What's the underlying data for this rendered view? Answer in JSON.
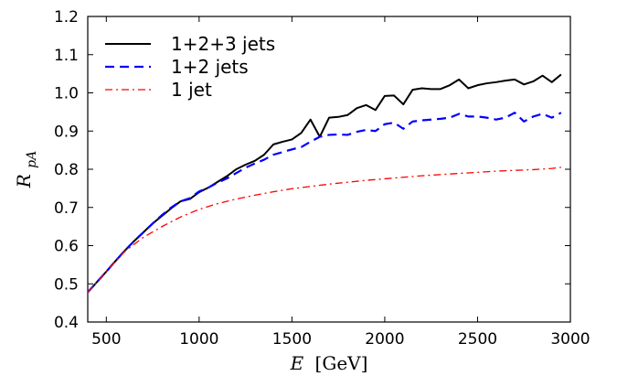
{
  "chart_data": {
    "type": "line",
    "title": "",
    "xlabel": "E [GeV]",
    "ylabel": "R_pA",
    "xlim": [
      400,
      3000
    ],
    "ylim": [
      0.4,
      1.2
    ],
    "x_ticks": [
      500,
      1000,
      1500,
      2000,
      2500,
      3000
    ],
    "y_ticks": [
      0.4,
      0.5,
      0.6,
      0.7,
      0.8,
      0.9,
      1.0,
      1.1,
      1.2
    ],
    "x_tick_labels": [
      "500",
      "1000",
      "1500",
      "2000",
      "2500",
      "3000"
    ],
    "y_tick_labels": [
      "0.4",
      "0.5",
      "0.6",
      "0.7",
      "0.8",
      "0.9",
      "1.0",
      "1.1",
      "1.2"
    ],
    "grid": false,
    "legend_position": "top-left",
    "series": [
      {
        "name": "1+2+3 jets",
        "color": "#000000",
        "style": "solid",
        "x": [
          400,
          450,
          500,
          550,
          600,
          650,
          700,
          750,
          800,
          850,
          900,
          950,
          1000,
          1050,
          1100,
          1150,
          1200,
          1250,
          1300,
          1350,
          1400,
          1450,
          1500,
          1550,
          1600,
          1650,
          1700,
          1750,
          1800,
          1850,
          1900,
          1950,
          2000,
          2050,
          2100,
          2150,
          2200,
          2250,
          2300,
          2350,
          2400,
          2450,
          2500,
          2550,
          2600,
          2650,
          2700,
          2750,
          2800,
          2850,
          2900,
          2950
        ],
        "y": [
          0.478,
          0.505,
          0.532,
          0.56,
          0.587,
          0.612,
          0.635,
          0.658,
          0.678,
          0.698,
          0.716,
          0.722,
          0.74,
          0.752,
          0.767,
          0.782,
          0.8,
          0.812,
          0.822,
          0.838,
          0.865,
          0.872,
          0.878,
          0.895,
          0.93,
          0.885,
          0.935,
          0.937,
          0.942,
          0.96,
          0.968,
          0.955,
          0.992,
          0.993,
          0.97,
          1.008,
          1.012,
          1.01,
          1.01,
          1.02,
          1.035,
          1.012,
          1.02,
          1.025,
          1.028,
          1.032,
          1.035,
          1.022,
          1.03,
          1.045,
          1.028,
          1.048
        ]
      },
      {
        "name": "1+2 jets",
        "color": "#0000ff",
        "style": "dashed",
        "x": [
          400,
          450,
          500,
          550,
          600,
          650,
          700,
          750,
          800,
          850,
          900,
          950,
          1000,
          1050,
          1100,
          1150,
          1200,
          1250,
          1300,
          1350,
          1400,
          1450,
          1500,
          1550,
          1600,
          1650,
          1700,
          1750,
          1800,
          1850,
          1900,
          1950,
          2000,
          2050,
          2100,
          2150,
          2200,
          2250,
          2300,
          2350,
          2400,
          2450,
          2500,
          2550,
          2600,
          2650,
          2700,
          2750,
          2800,
          2850,
          2900,
          2950
        ],
        "y": [
          0.478,
          0.505,
          0.532,
          0.56,
          0.587,
          0.612,
          0.635,
          0.658,
          0.68,
          0.7,
          0.716,
          0.724,
          0.742,
          0.752,
          0.765,
          0.776,
          0.79,
          0.804,
          0.815,
          0.825,
          0.838,
          0.845,
          0.852,
          0.858,
          0.872,
          0.885,
          0.89,
          0.891,
          0.89,
          0.898,
          0.903,
          0.9,
          0.918,
          0.922,
          0.906,
          0.925,
          0.928,
          0.93,
          0.932,
          0.935,
          0.945,
          0.938,
          0.938,
          0.935,
          0.93,
          0.935,
          0.948,
          0.925,
          0.938,
          0.945,
          0.935,
          0.948
        ]
      },
      {
        "name": "1 jet",
        "color": "#ff0000",
        "style": "dashdot",
        "x": [
          400,
          500,
          600,
          700,
          800,
          900,
          1000,
          1100,
          1200,
          1300,
          1400,
          1500,
          1600,
          1700,
          1800,
          1900,
          2000,
          2100,
          2200,
          2300,
          2400,
          2500,
          2600,
          2700,
          2800,
          2900,
          2950
        ],
        "y": [
          0.478,
          0.532,
          0.585,
          0.622,
          0.65,
          0.675,
          0.695,
          0.71,
          0.722,
          0.732,
          0.741,
          0.749,
          0.755,
          0.761,
          0.766,
          0.771,
          0.775,
          0.779,
          0.783,
          0.786,
          0.789,
          0.792,
          0.795,
          0.797,
          0.799,
          0.802,
          0.805
        ]
      }
    ]
  }
}
